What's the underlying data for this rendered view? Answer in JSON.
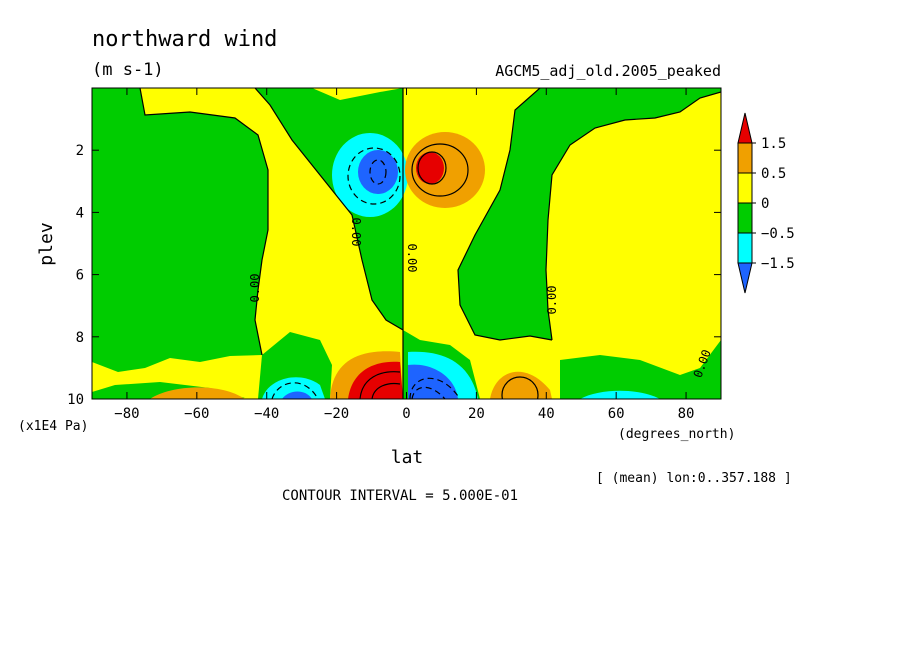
{
  "chart_data": {
    "type": "heatmap",
    "title": "northward wind",
    "units": "(m s-1)",
    "dataset": "AGCM5_adj_old.2005_peaked",
    "xlabel": "lat",
    "xunit": "(degrees_north)",
    "ylabel": "plev",
    "yunit": "(x1E4 Pa)",
    "xlim": [
      -90,
      90
    ],
    "ylim": [
      10,
      0
    ],
    "x_ticks": [
      -80,
      -60,
      -40,
      -20,
      0,
      20,
      40,
      60,
      80
    ],
    "y_ticks": [
      2,
      4,
      6,
      8,
      10
    ],
    "mean_note": "[ (mean) lon:0..357.188 ]",
    "contour_interval": "CONTOUR INTERVAL = 5.000E-01",
    "contour_label": "0.00",
    "colorbar": {
      "levels": [
        "1.5",
        "0.5",
        "0",
        "-0.5",
        "-1.5"
      ],
      "colors": [
        "#e60000",
        "#f0a000",
        "#ffff00",
        "#00cc00",
        "#00ffff",
        "#1e64ff"
      ]
    },
    "features": [
      {
        "name": "neg-upper-core",
        "lat": -7,
        "plev": 2.7,
        "value": -1.0
      },
      {
        "name": "pos-upper-core",
        "lat": 7,
        "plev": 2.7,
        "value": 1.0
      },
      {
        "name": "pos-lower-sh",
        "lat": -8,
        "plev": 9.6,
        "value": 2.0
      },
      {
        "name": "neg-lower-nh",
        "lat": 7,
        "plev": 9.6,
        "value": -2.0
      },
      {
        "name": "neg-lower-sh",
        "lat": -32,
        "plev": 9.7,
        "value": -1.0
      },
      {
        "name": "pos-lower-nh",
        "lat": 30,
        "plev": 9.6,
        "value": 1.0
      },
      {
        "name": "pos-lower-far-sh",
        "lat": -58,
        "plev": 9.8,
        "value": 0.6
      },
      {
        "name": "neg-lower-far-nh",
        "lat": 63,
        "plev": 9.8,
        "value": -0.6
      }
    ]
  }
}
